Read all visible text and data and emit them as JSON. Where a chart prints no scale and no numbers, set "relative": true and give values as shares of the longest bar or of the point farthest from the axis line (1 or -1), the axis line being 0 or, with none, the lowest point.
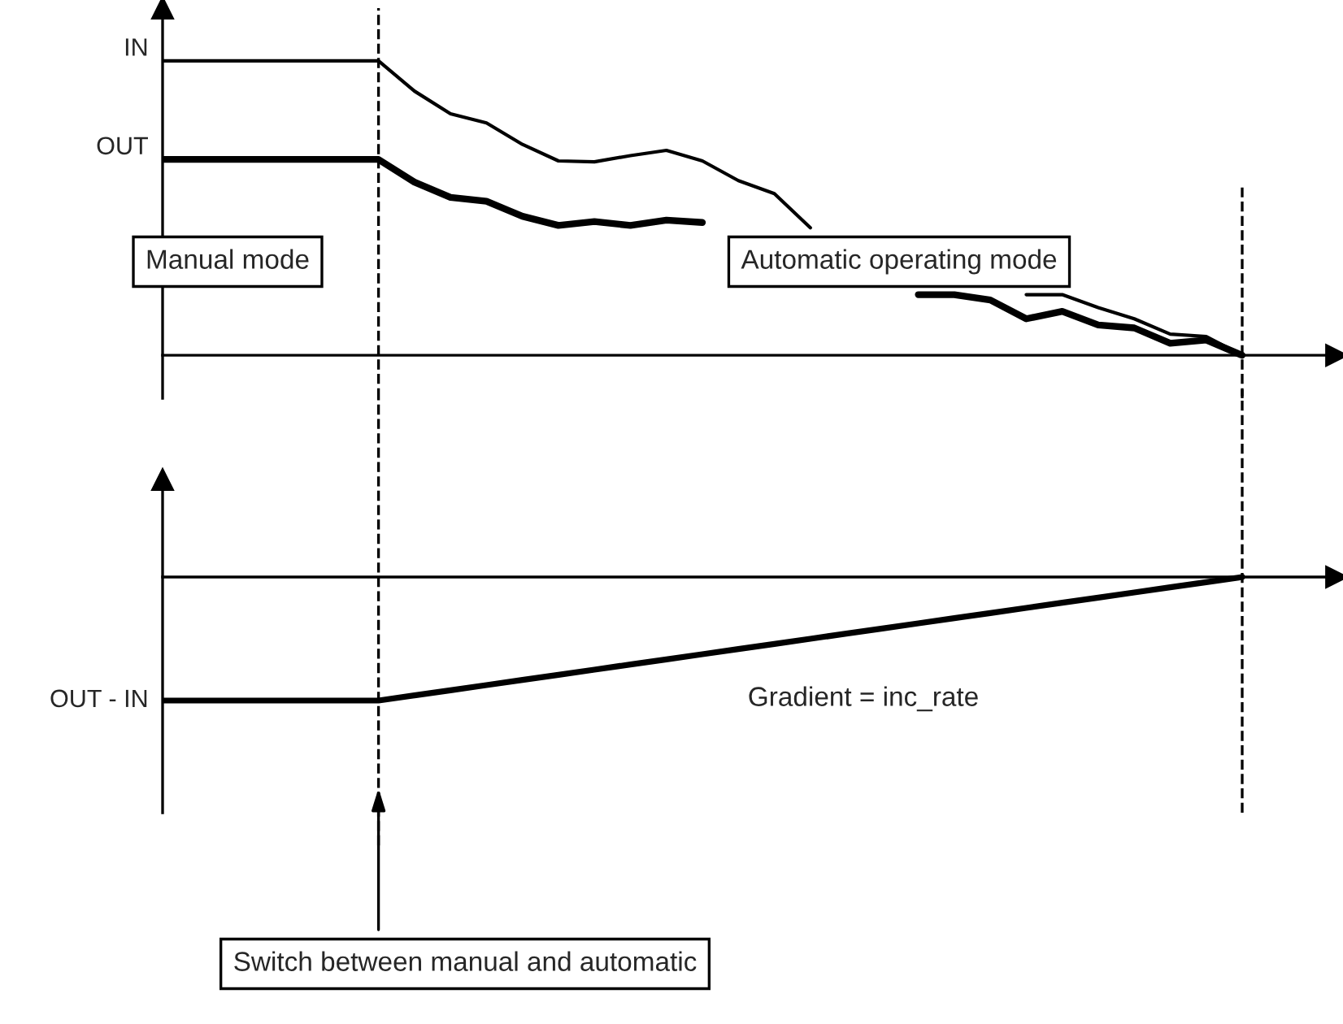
{
  "chart_data": [
    {
      "type": "line",
      "relative": true,
      "categories": [
        null,
        null,
        null,
        null,
        null,
        null,
        null,
        null,
        null,
        null,
        null,
        null,
        null,
        null,
        null,
        null,
        null,
        null,
        null,
        null,
        null,
        null,
        null,
        null,
        null,
        null,
        null,
        null,
        null,
        null,
        null
      ],
      "series": [
        {
          "name": "IN",
          "color": "#000000",
          "values": [
            1,
            1,
            1,
            1,
            1,
            1,
            1,
            0.897,
            0.82,
            0.789,
            0.716,
            0.66,
            0.657,
            0.678,
            0.696,
            0.66,
            0.593,
            0.549,
            0.433,
            null,
            null,
            null,
            null,
            null,
            0.206,
            0.206,
            0.162,
            0.124,
            0.072,
            0.064,
            0
          ]
        },
        {
          "name": "OUT",
          "color": "#000000",
          "values": [
            0.665,
            0.665,
            0.665,
            0.665,
            0.665,
            0.665,
            0.665,
            0.588,
            0.536,
            0.523,
            0.472,
            0.441,
            0.454,
            0.441,
            0.459,
            0.451,
            null,
            null,
            null,
            null,
            null,
            0.206,
            0.206,
            0.188,
            0.124,
            0.149,
            0.103,
            0.093,
            0.041,
            0.052,
            0
          ]
        }
      ],
      "annotations": [
        "Manual mode",
        "Automatic operating mode"
      ]
    },
    {
      "type": "line",
      "relative": true,
      "categories": [
        null,
        null,
        null,
        null,
        null,
        null,
        null,
        null,
        null,
        null,
        null,
        null,
        null,
        null,
        null,
        null,
        null,
        null,
        null,
        null,
        null,
        null,
        null,
        null,
        null,
        null,
        null,
        null,
        null,
        null,
        null
      ],
      "series": [
        {
          "name": "OUT - IN",
          "color": "#000000",
          "values": [
            -1,
            -1,
            -1,
            -1,
            -1,
            -1,
            -1,
            -0.958,
            -0.917,
            -0.875,
            -0.833,
            -0.792,
            -0.75,
            -0.708,
            -0.667,
            -0.625,
            -0.583,
            -0.542,
            -0.5,
            -0.458,
            -0.417,
            -0.375,
            -0.333,
            -0.292,
            -0.25,
            -0.208,
            -0.167,
            -0.125,
            -0.083,
            -0.042,
            0
          ]
        }
      ],
      "annotations": [
        "Gradient = inc_rate",
        "Switch between manual and automatic"
      ]
    }
  ]
}
